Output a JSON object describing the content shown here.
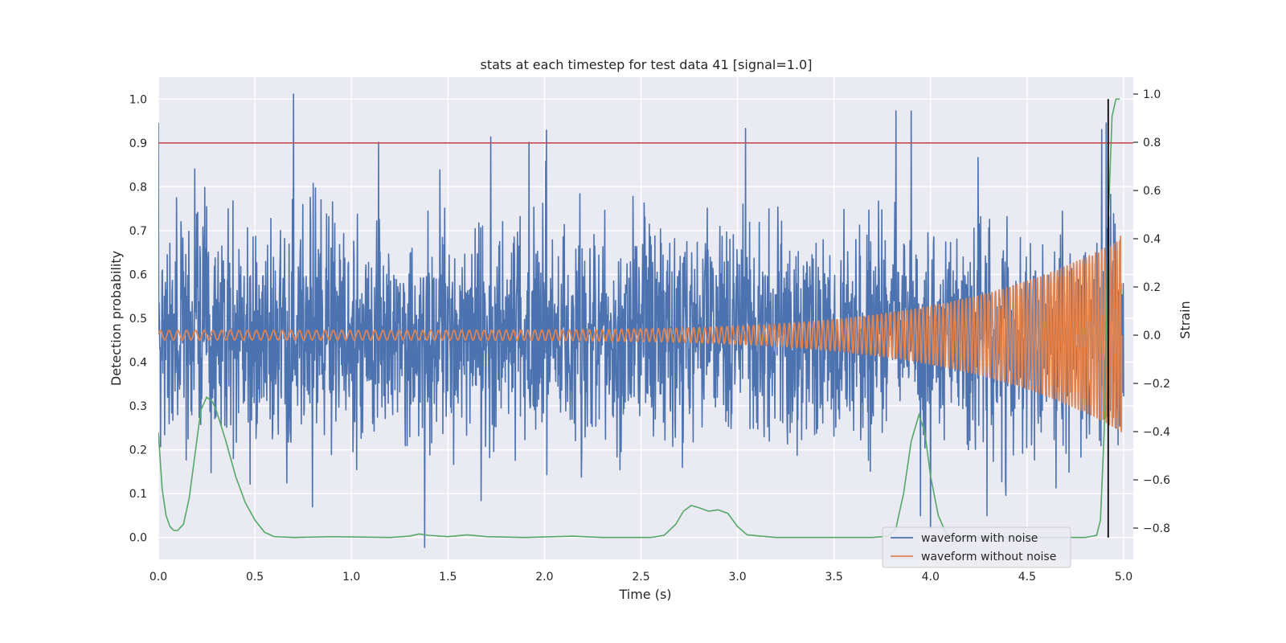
{
  "chart_data": {
    "type": "line",
    "title": "stats at each timestep for test data 41 [signal=1.0]",
    "xlabel": "Time (s)",
    "ylabel_left": "Detection probability",
    "ylabel_right": "Strain",
    "xlim": [
      0.0,
      5.05
    ],
    "ylim_left": [
      -0.05,
      1.05
    ],
    "ylim_right": [
      -0.93,
      1.07
    ],
    "x_ticks": [
      "0.0",
      "0.5",
      "1.0",
      "1.5",
      "2.0",
      "2.5",
      "3.0",
      "3.5",
      "4.0",
      "4.5",
      "5.0"
    ],
    "y_ticks_left": [
      "0.0",
      "0.1",
      "0.2",
      "0.3",
      "0.4",
      "0.5",
      "0.6",
      "0.7",
      "0.8",
      "0.9",
      "1.0"
    ],
    "y_ticks_right": [
      "−0.8",
      "−0.6",
      "−0.4",
      "−0.2",
      "0.0",
      "0.2",
      "0.4",
      "0.6",
      "0.8",
      "1.0"
    ],
    "grid": true,
    "legend_position": "lower-right",
    "threshold": {
      "y": 0.9,
      "color": "#c44e52"
    },
    "detection_marker": {
      "x": 4.92,
      "y_range": [
        0.0,
        1.0
      ],
      "color": "#000000"
    },
    "series": [
      {
        "name": "waveform with noise",
        "color": "#4c72b0",
        "axis": "right",
        "kind": "noise",
        "x_range": [
          0.0,
          5.0
        ],
        "center": 0.0,
        "typical_range": [
          -0.3,
          0.3
        ],
        "extreme_range": [
          -0.88,
          1.0
        ],
        "notable_peaks": [
          {
            "x": 0.0,
            "y": 0.88
          },
          {
            "x": 0.7,
            "y": 1.0
          },
          {
            "x": 1.14,
            "y": 0.8
          },
          {
            "x": 1.38,
            "y": -0.88
          },
          {
            "x": 1.92,
            "y": 0.8
          },
          {
            "x": 2.01,
            "y": 0.85
          },
          {
            "x": 3.82,
            "y": 0.93
          },
          {
            "x": 3.9,
            "y": 0.93
          },
          {
            "x": 4.91,
            "y": 0.88
          },
          {
            "x": 4.0,
            "y": -0.8
          }
        ]
      },
      {
        "name": "waveform without noise",
        "color": "#dd8452",
        "axis": "right",
        "kind": "chirp",
        "x_range": [
          0.0,
          4.99
        ],
        "start_amplitude": 0.02,
        "end_amplitude": 0.4,
        "start_cycles_per_s": 22,
        "end_cycles_per_s": 65,
        "final_peak": 0.41,
        "final_trough": -0.4
      },
      {
        "color": "#55a868",
        "axis": "left",
        "kind": "probability",
        "x": [
          0.0,
          0.02,
          0.04,
          0.06,
          0.08,
          0.1,
          0.13,
          0.16,
          0.19,
          0.22,
          0.25,
          0.28,
          0.3,
          0.35,
          0.4,
          0.45,
          0.5,
          0.55,
          0.6,
          0.7,
          0.9,
          1.2,
          1.3,
          1.35,
          1.4,
          1.5,
          1.6,
          1.65,
          1.7,
          1.9,
          2.15,
          2.3,
          2.55,
          2.62,
          2.68,
          2.72,
          2.76,
          2.8,
          2.85,
          2.9,
          2.95,
          3.0,
          3.05,
          3.2,
          3.7,
          3.78,
          3.82,
          3.86,
          3.9,
          3.94,
          3.97,
          4.0,
          4.04,
          4.08,
          4.12,
          4.2,
          4.4,
          4.8,
          4.86,
          4.88,
          4.9,
          4.92,
          4.94,
          4.96,
          4.98
        ],
        "y": [
          0.24,
          0.11,
          0.05,
          0.025,
          0.016,
          0.016,
          0.03,
          0.09,
          0.19,
          0.29,
          0.32,
          0.31,
          0.29,
          0.22,
          0.14,
          0.08,
          0.04,
          0.012,
          0.002,
          0.0,
          0.002,
          0.0,
          0.003,
          0.008,
          0.005,
          0.002,
          0.006,
          0.004,
          0.002,
          0.0,
          0.003,
          0.0,
          0.0,
          0.005,
          0.03,
          0.06,
          0.073,
          0.068,
          0.06,
          0.063,
          0.055,
          0.025,
          0.006,
          0.0,
          0.0,
          0.003,
          0.02,
          0.1,
          0.22,
          0.28,
          0.24,
          0.14,
          0.05,
          0.01,
          0.0,
          0.0,
          0.0,
          0.0,
          0.005,
          0.04,
          0.25,
          0.72,
          0.96,
          1.0,
          1.0
        ]
      }
    ]
  }
}
